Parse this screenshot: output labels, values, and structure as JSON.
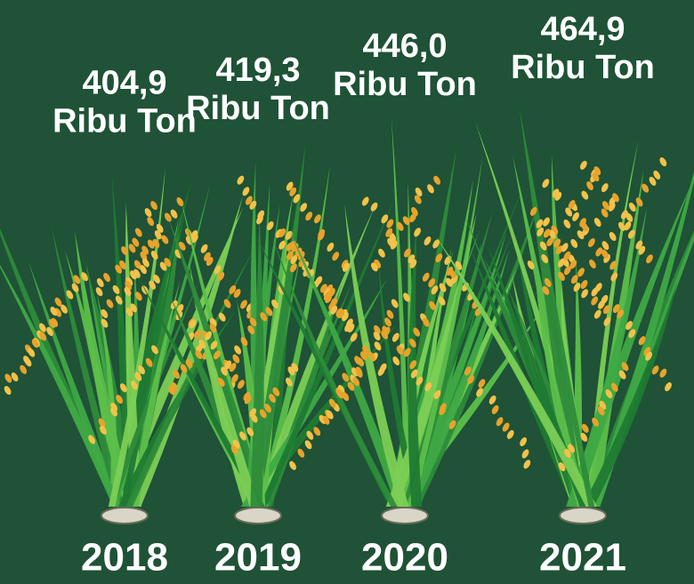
{
  "chart_data": {
    "type": "pictogram",
    "categories": [
      "2018",
      "2019",
      "2020",
      "2021"
    ],
    "values": [
      404.9,
      419.3,
      446.0,
      464.9
    ],
    "value_labels": [
      "404,9",
      "419,3",
      "446,0",
      "464,9"
    ],
    "unit": "Ribu Ton"
  }
}
